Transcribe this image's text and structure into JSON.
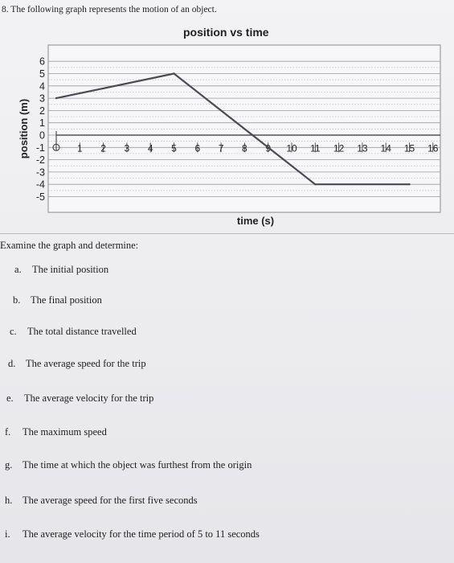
{
  "question_header": "8.  The following graph represents the motion of an object.",
  "chart_data": {
    "type": "line",
    "title": "position vs time",
    "xlabel": "time (s)",
    "ylabel": "position (m)",
    "xlim": [
      0,
      16
    ],
    "ylim": [
      -5,
      6
    ],
    "x_ticks": [
      "1",
      "2",
      "3",
      "4",
      "5",
      "6",
      "7",
      "8",
      "9",
      "10",
      "11",
      "12",
      "13",
      "14",
      "15",
      "16"
    ],
    "y_ticks": [
      "6",
      "5",
      "4",
      "3",
      "2",
      "1",
      "0",
      "-1",
      "-2",
      "-3",
      "-4",
      "-5"
    ],
    "grid": true,
    "series": [
      {
        "x": [
          0,
          5,
          9,
          11,
          15
        ],
        "y": [
          3,
          5,
          -1,
          -4,
          -4
        ]
      }
    ],
    "line_color": "#4a4a55"
  },
  "prompt": "Examine the graph and determine:",
  "items": [
    {
      "letter": "a.",
      "text": "The initial position"
    },
    {
      "letter": "b.",
      "text": "The final position"
    },
    {
      "letter": "c.",
      "text": "The total distance travelled"
    },
    {
      "letter": "d.",
      "text": "The average speed for the trip"
    },
    {
      "letter": "e.",
      "text": "The average velocity for the trip"
    },
    {
      "letter": "f.",
      "text": "The maximum speed"
    },
    {
      "letter": "g.",
      "text": "The time at which the object was furthest from the origin"
    },
    {
      "letter": "h.",
      "text": "The average speed for the first five seconds"
    },
    {
      "letter": "i.",
      "text": "The average velocity for the time period of 5 to 11 seconds"
    }
  ]
}
